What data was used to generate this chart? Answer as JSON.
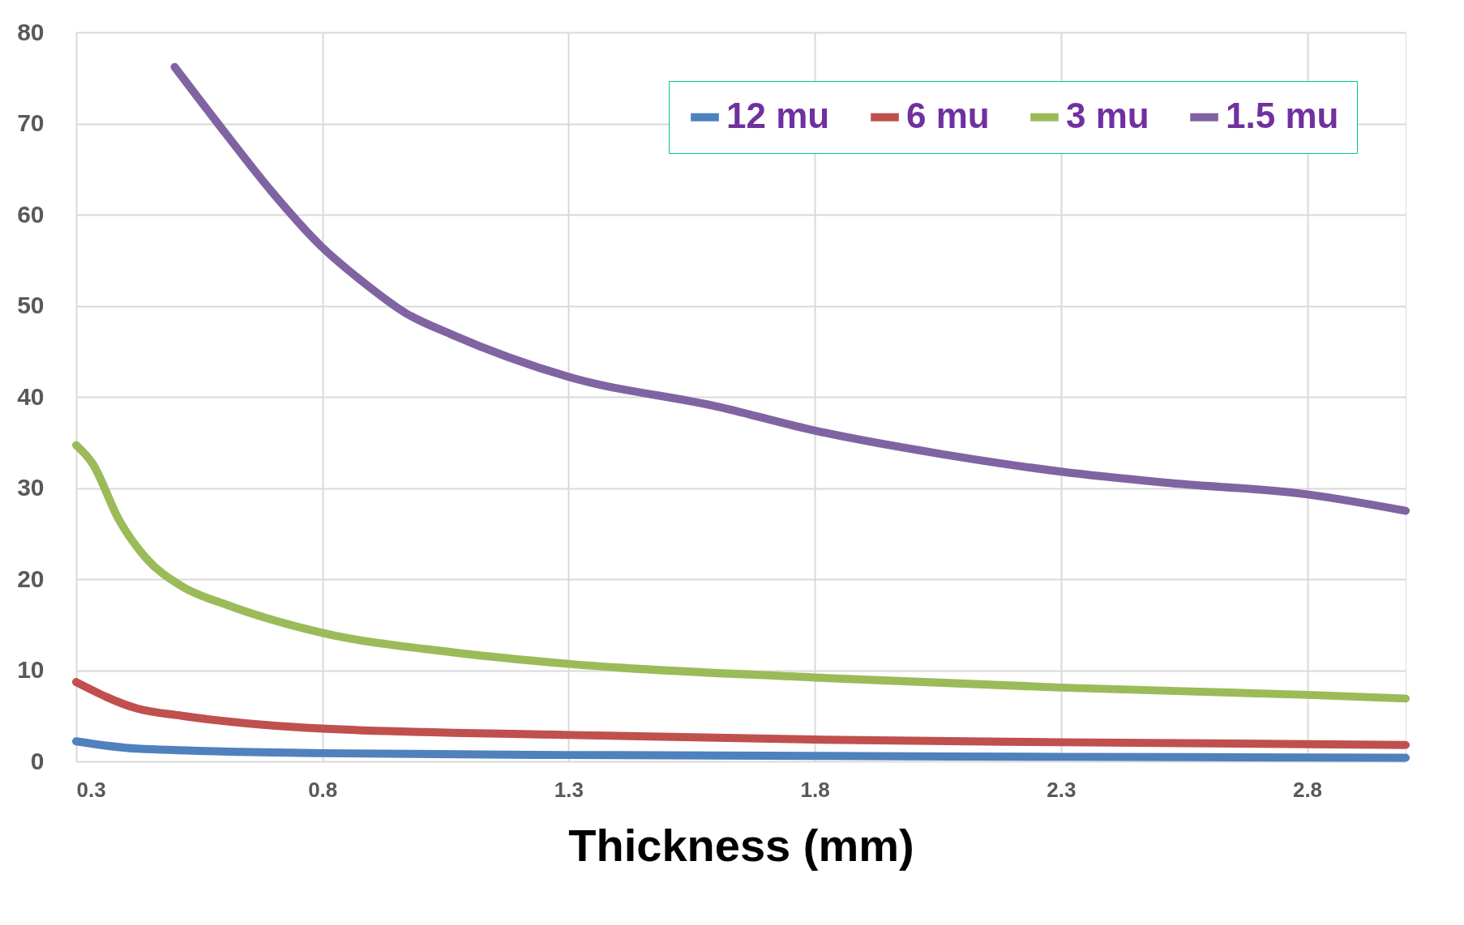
{
  "chart_data": {
    "type": "line",
    "xlabel": "Thickness (mm)",
    "xlim": [
      0.3,
      3.0
    ],
    "xticks": [
      0.3,
      0.8,
      1.3,
      1.8,
      2.3,
      2.8
    ],
    "ylim": [
      0,
      80
    ],
    "yticks": [
      0,
      10,
      20,
      30,
      40,
      50,
      60,
      70,
      80
    ],
    "grid": true,
    "legend": "top right",
    "marker": "none",
    "line_style": "solid",
    "series": [
      {
        "name": "12 mu",
        "color": "#4f81bd",
        "x": [
          0.3,
          0.424,
          0.8,
          1.3,
          1.8,
          2.3,
          3.0
        ],
        "values": [
          2.2,
          1.4,
          0.9,
          0.7,
          0.6,
          0.5,
          0.4
        ]
      },
      {
        "name": "6 mu",
        "color": "#c0504d",
        "x": [
          0.3,
          0.424,
          0.515,
          0.8,
          1.3,
          1.8,
          2.3,
          3.0
        ],
        "values": [
          8.7,
          5.8,
          5.0,
          3.6,
          2.9,
          2.4,
          2.1,
          1.8
        ]
      },
      {
        "name": "3 mu",
        "color": "#9bbb59",
        "x": [
          0.3,
          0.333,
          0.387,
          0.442,
          0.515,
          0.605,
          0.8,
          1.06,
          1.3,
          1.8,
          2.3,
          2.8,
          3.0
        ],
        "values": [
          34.7,
          32.7,
          26.5,
          22.3,
          19.2,
          17.2,
          14.1,
          12.0,
          10.7,
          9.2,
          8.1,
          7.3,
          6.9
        ]
      },
      {
        "name": "1.5 mu",
        "color": "#8064a2",
        "x": [
          0.5,
          0.605,
          0.696,
          0.8,
          0.878,
          0.969,
          1.06,
          1.3,
          1.605,
          1.8,
          2.06,
          2.3,
          2.51,
          2.8,
          3.0
        ],
        "values": [
          76.2,
          68.8,
          62.6,
          56.4,
          52.8,
          49.2,
          46.9,
          42.2,
          38.9,
          36.3,
          33.7,
          31.8,
          30.6,
          29.3,
          27.5
        ]
      }
    ]
  }
}
